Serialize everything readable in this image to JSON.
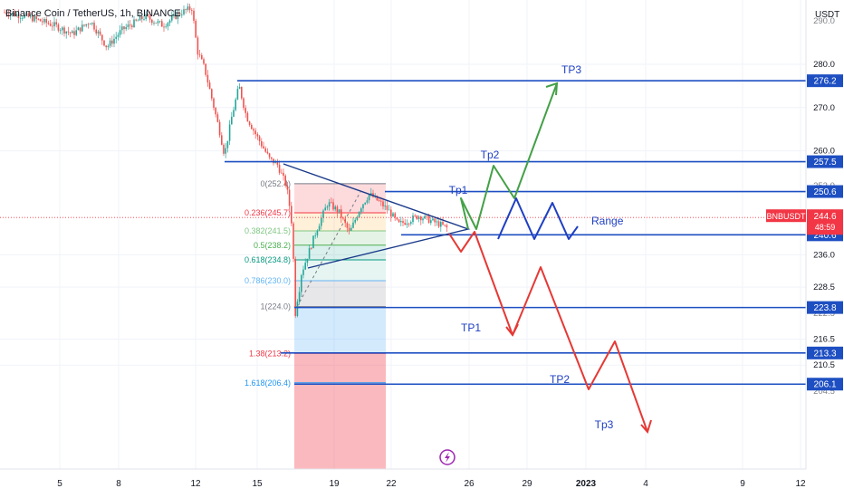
{
  "header": {
    "title": "Binance Coin / TetherUS, 1h, BINANCE",
    "axis_unit": "USDT"
  },
  "colors": {
    "candle_up": "#26a69a",
    "candle_down": "#ef5350",
    "level_line": "#1e4fc2",
    "price_tag": "#1e4fc2",
    "current_tag": "#f23645",
    "bull_path": "#43a047",
    "bear_path": "#e53935",
    "range_path": "#1e3fc2",
    "triangle": "#1a3a8a"
  },
  "chart_data": {
    "type": "candlestick",
    "title": "Binance Coin / TetherUS, 1h, BINANCE",
    "symbol": "BNBUSDT",
    "ylabel": "USDT",
    "ylim": [
      203,
      296
    ],
    "x_ticks": [
      "5",
      "8",
      "12",
      "15",
      "19",
      "22",
      "26",
      "29",
      "2023",
      "4",
      "9",
      "12"
    ],
    "y_ticks": [
      280.0,
      270.0,
      260.0,
      236.0,
      228.5,
      216.5,
      210.5
    ],
    "y_ticks_partial": [
      "290.0",
      "252.0",
      "222.5",
      "204.5"
    ],
    "current_price": {
      "label": "BNBUSDT",
      "value": "244.6",
      "countdown": "48:59"
    },
    "horizontal_levels": [
      {
        "value": 276.2,
        "label": "276.2"
      },
      {
        "value": 257.5,
        "label": "257.5"
      },
      {
        "value": 250.6,
        "label": "250.6"
      },
      {
        "value": 240.6,
        "label": "240.6"
      },
      {
        "value": 223.8,
        "label": "223.8"
      },
      {
        "value": 213.3,
        "label": "213.3"
      },
      {
        "value": 206.1,
        "label": "206.1"
      }
    ],
    "fibonacci": [
      {
        "ratio": "0",
        "price": 252.4,
        "label": "0(252.4)"
      },
      {
        "ratio": "0.236",
        "price": 245.7,
        "label": "0.236(245.7)"
      },
      {
        "ratio": "0.382",
        "price": 241.5,
        "label": "0.382(241.5)"
      },
      {
        "ratio": "0.5",
        "price": 238.2,
        "label": "0.5(238.2)"
      },
      {
        "ratio": "0.618",
        "price": 234.8,
        "label": "0.618(234.8)"
      },
      {
        "ratio": "0.786",
        "price": 230.0,
        "label": "0.786(230.0)"
      },
      {
        "ratio": "1",
        "price": 224.0,
        "label": "1(224.0)"
      },
      {
        "ratio": "1.38",
        "price": 213.2,
        "label": "1.38(213.2)"
      },
      {
        "ratio": "1.618",
        "price": 206.4,
        "label": "1.618(206.4)"
      }
    ],
    "annotations": {
      "bull_targets": [
        "Tp1",
        "Tp2",
        "TP3"
      ],
      "range": "Range",
      "bear_targets": [
        "TP1",
        "TP2",
        "Tp3"
      ]
    }
  }
}
